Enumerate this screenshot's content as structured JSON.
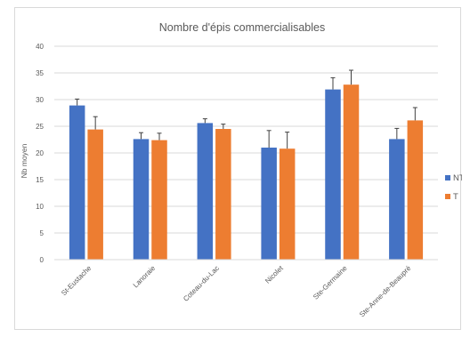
{
  "chart_data": {
    "type": "bar",
    "title": "Nombre d'épis commercialisables",
    "xlabel": "",
    "ylabel": "Nb moyen",
    "ylim": [
      0,
      40
    ],
    "yticks": [
      "0",
      "5",
      "10",
      "15",
      "20",
      "25",
      "30",
      "35",
      "40"
    ],
    "grid": true,
    "legend_position": "right",
    "categories": [
      "St-Eustache",
      "Lanoraie",
      "Coteau-du-Lac",
      "Nicolet",
      "Ste-Germaine",
      "Ste-Anne-de-Beaupré"
    ],
    "series": [
      {
        "name": "NT",
        "color": "#4472c4",
        "values": [
          28.9,
          22.6,
          25.6,
          21.0,
          31.9,
          22.6
        ],
        "errors": [
          1.2,
          1.2,
          0.8,
          3.2,
          2.2,
          2.0
        ]
      },
      {
        "name": "T",
        "color": "#ed7d31",
        "values": [
          24.4,
          22.4,
          24.5,
          20.8,
          32.8,
          26.1
        ],
        "errors": [
          2.4,
          1.3,
          0.9,
          3.1,
          2.7,
          2.4
        ]
      }
    ]
  }
}
